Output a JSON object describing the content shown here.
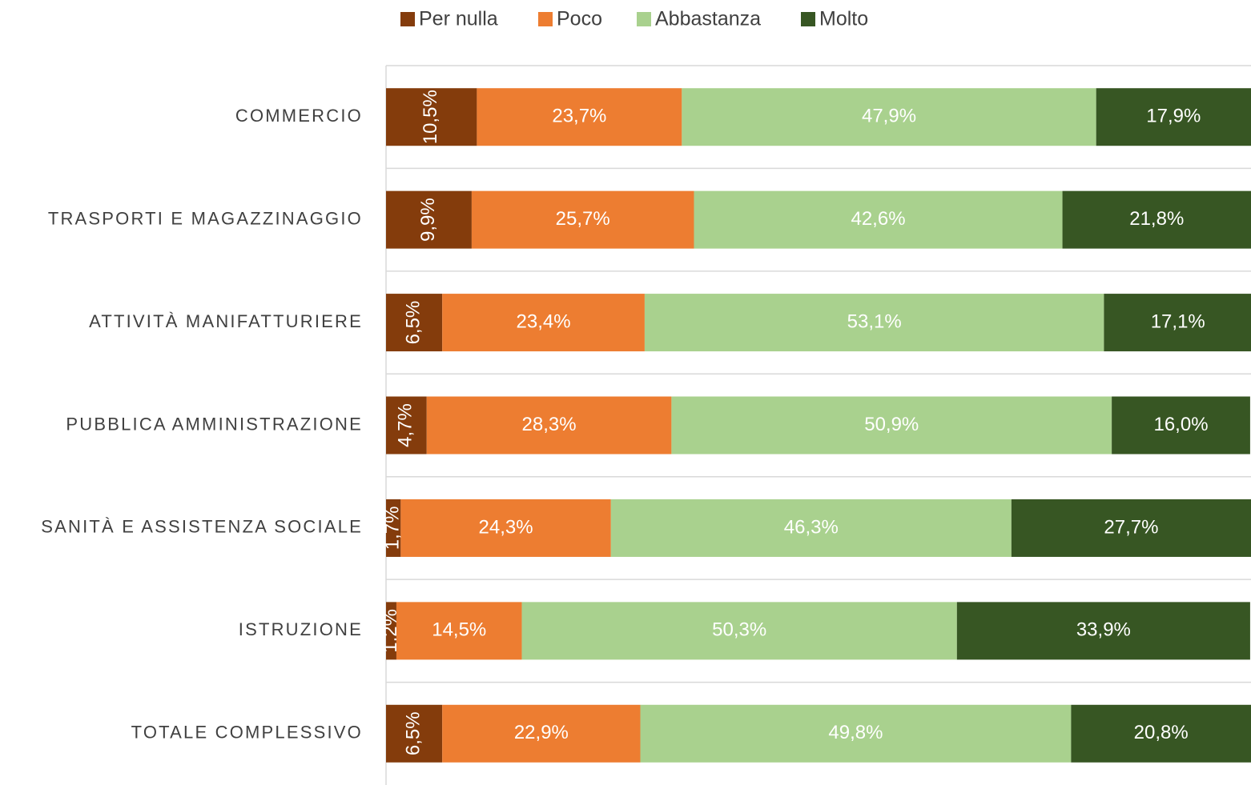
{
  "chart_data": {
    "type": "stacked_bar_horizontal",
    "categories": [
      "COMMERCIO",
      "TRASPORTI E MAGAZZINAGGIO",
      "ATTIVITÀ MANIFATTURIERE",
      "PUBBLICA AMMINISTRAZIONE",
      "SANITÀ E ASSISTENZA SOCIALE",
      "ISTRUZIONE",
      "TOTALE COMPLESSIVO"
    ],
    "series": [
      {
        "name": "Per nulla",
        "color": "#843c0c",
        "values": [
          10.5,
          9.9,
          6.5,
          4.7,
          1.7,
          1.2,
          6.5
        ],
        "value_labels": [
          "10,5%",
          "9,9%",
          "6,5%",
          "4,7%",
          "1,7%",
          "1,2%",
          "6,5%"
        ]
      },
      {
        "name": "Poco",
        "color": "#ed7d31",
        "values": [
          23.7,
          25.7,
          23.4,
          28.3,
          24.3,
          14.5,
          22.9
        ],
        "value_labels": [
          "23,7%",
          "25,7%",
          "23,4%",
          "28,3%",
          "24,3%",
          "14,5%",
          "22,9%"
        ]
      },
      {
        "name": "Abbastanza",
        "color": "#a9d18e",
        "values": [
          47.9,
          42.6,
          53.1,
          50.9,
          46.3,
          50.3,
          49.8
        ],
        "value_labels": [
          "47,9%",
          "42,6%",
          "53,1%",
          "50,9%",
          "46,3%",
          "50,3%",
          "49,8%"
        ]
      },
      {
        "name": "Molto",
        "color": "#375623",
        "values": [
          17.9,
          21.8,
          17.1,
          16.0,
          27.7,
          33.9,
          20.8
        ],
        "value_labels": [
          "17,9%",
          "21,8%",
          "17,1%",
          "16,0%",
          "27,7%",
          "33,9%",
          "20,8%"
        ]
      }
    ],
    "xlim": [
      0,
      100
    ],
    "legend": "top"
  }
}
